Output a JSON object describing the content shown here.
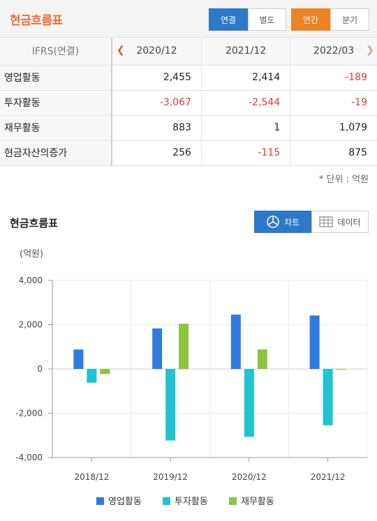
{
  "header": {
    "title": "현금흐름표",
    "toggle1": [
      "연결",
      "별도"
    ],
    "toggle2": [
      "연간",
      "분기"
    ]
  },
  "table": {
    "corner": "IFRS(연결)",
    "columns": [
      "2020/12",
      "2021/12",
      "2022/03"
    ],
    "rows": [
      {
        "label": "영업활동",
        "values": [
          "2,455",
          "2,414",
          "-189"
        ]
      },
      {
        "label": "투자활동",
        "values": [
          "-3,067",
          "-2,544",
          "-19"
        ]
      },
      {
        "label": "재무활동",
        "values": [
          "883",
          "1",
          "1,079"
        ]
      },
      {
        "label": "현금자산의증가",
        "values": [
          "256",
          "-115",
          "875"
        ]
      }
    ]
  },
  "unit_note": "* 단위 : 억원",
  "section": {
    "title": "현금흐름표",
    "chart_button": "차트",
    "data_button": "데이터"
  },
  "colors": {
    "accent_orange": "#e8703a",
    "toggle_blue": "#2d79c7",
    "toggle_orange": "#ec8327",
    "negative_red": "#e03a3a",
    "series_operating": "#2f7be0",
    "series_investing": "#1fc4d0",
    "series_financing": "#8cc43f"
  },
  "chart_data": {
    "type": "bar",
    "ylabel": "(억원)",
    "categories": [
      "2018/12",
      "2019/12",
      "2020/12",
      "2021/12"
    ],
    "yticks": [
      "4,000",
      "2,000",
      "0",
      "-2,000",
      "-4,000"
    ],
    "ylim": [
      -4000,
      4000
    ],
    "grid": true,
    "legend_position": "bottom",
    "series": [
      {
        "name": "영업활동",
        "color": "#2f7be0",
        "values": [
          880,
          1830,
          2455,
          2414
        ]
      },
      {
        "name": "투자활동",
        "color": "#1fc4d0",
        "values": [
          -620,
          -3230,
          -3067,
          -2544
        ]
      },
      {
        "name": "재무활동",
        "color": "#8cc43f",
        "values": [
          -230,
          2040,
          883,
          1
        ]
      }
    ]
  }
}
